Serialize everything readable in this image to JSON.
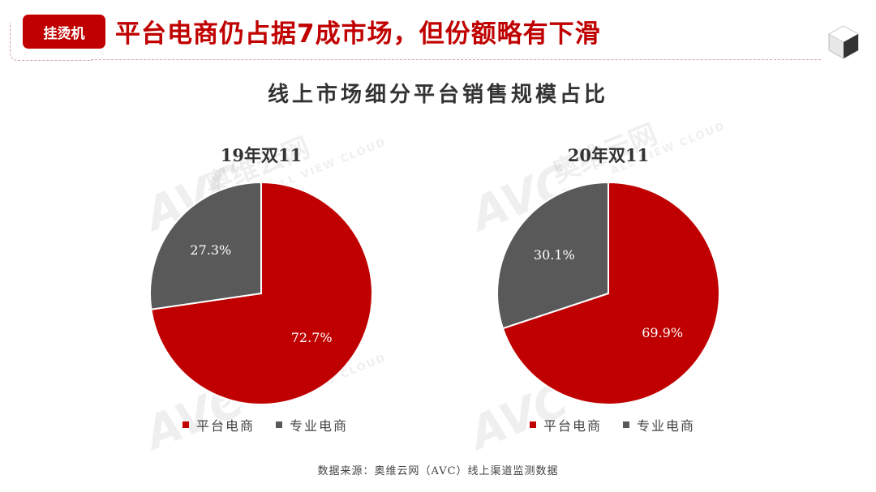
{
  "header": {
    "tag": "挂烫机",
    "headline": "平台电商仍占据7成市场，但份额略有下滑"
  },
  "chart_title": "线上市场细分平台销售规模占比",
  "colors": {
    "platform": "#c00000",
    "specialist": "#595959",
    "accent": "#c00000"
  },
  "chart_data": [
    {
      "type": "pie",
      "title": "19年双11",
      "slices": [
        {
          "label": "平台电商",
          "value": 72.7,
          "display": "72.7%"
        },
        {
          "label": "专业电商",
          "value": 27.3,
          "display": "27.3%"
        }
      ],
      "legend": [
        "平台电商",
        "专业电商"
      ],
      "legend_position": "bottom"
    },
    {
      "type": "pie",
      "title": "20年双11",
      "slices": [
        {
          "label": "平台电商",
          "value": 69.9,
          "display": "69.9%"
        },
        {
          "label": "专业电商",
          "value": 30.1,
          "display": "30.1%"
        }
      ],
      "legend": [
        "平台电商",
        "专业电商"
      ],
      "legend_position": "bottom"
    }
  ],
  "watermark": {
    "logo": "AVC",
    "cn": "奥维云网",
    "en": "ALL VIEW CLOUD"
  },
  "source": "数据来源：奥维云网（AVC）线上渠道监测数据"
}
